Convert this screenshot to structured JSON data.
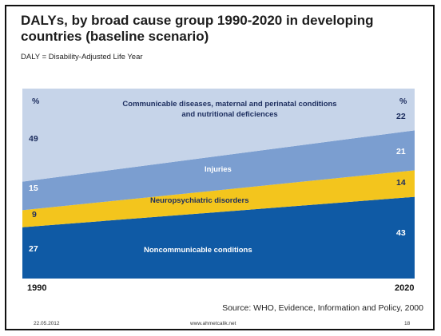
{
  "title": "DALYs, by broad cause group 1990-2020 in developing countries (baseline scenario)",
  "subtitle": "DALY = Disability-Adjusted Life Year",
  "source": "Source: WHO, Evidence, Information and Policy, 2000",
  "footer": {
    "date": "22.05.2012",
    "site": "www.ahmetcalik.net",
    "page": "18"
  },
  "percent_symbol": "%",
  "colors": {
    "communicable": "#c6d4e9",
    "injuries": "#7b9ed0",
    "neuropsychiatric": "#f3c51d",
    "noncommunicable": "#0f5aa5"
  },
  "chart_data": {
    "type": "area",
    "x": [
      "1990",
      "2020"
    ],
    "series": [
      {
        "name": "Noncommunicable conditions",
        "values": [
          27,
          43
        ]
      },
      {
        "name": "Neuropsychiatric disorders",
        "values": [
          9,
          14
        ]
      },
      {
        "name": "Injuries",
        "values": [
          15,
          21
        ]
      },
      {
        "name": "Communicable diseases, maternal and perinatal conditions and nutritional deficiences",
        "values": [
          49,
          22
        ]
      }
    ],
    "stacked": true,
    "unit": "%",
    "ylim": [
      0,
      100
    ]
  }
}
